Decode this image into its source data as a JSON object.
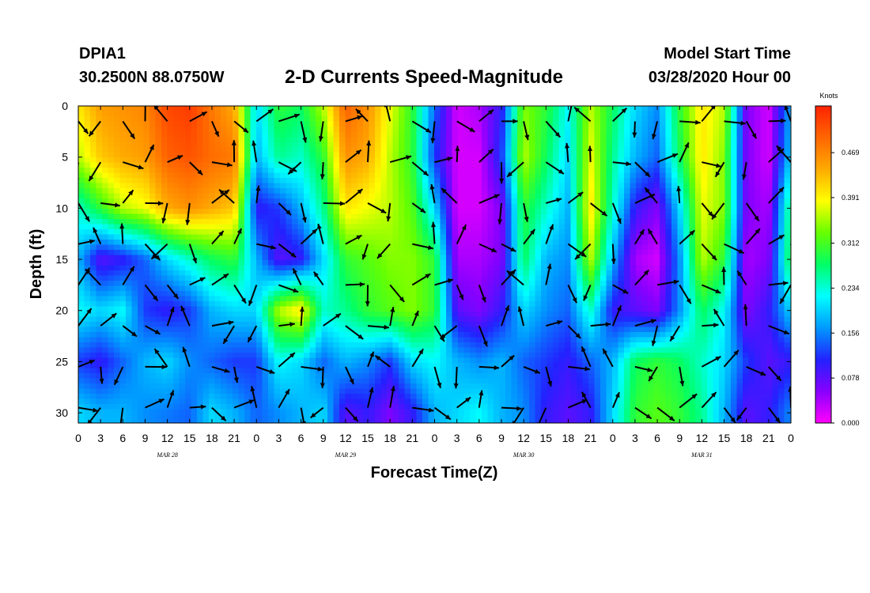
{
  "header": {
    "station": "DPIA1",
    "location": "30.2500N 88.0750W",
    "title": "2-D Currents Speed-Magnitude",
    "model_start_label": "Model Start Time",
    "model_start_value": "03/28/2020 Hour 00"
  },
  "chart_data": {
    "type": "heatmap",
    "title": "2-D Currents Speed-Magnitude",
    "xlabel": "Forecast Time(Z)",
    "ylabel": "Depth (ft)",
    "x_tick_labels": [
      "0",
      "3",
      "6",
      "9",
      "12",
      "15",
      "18",
      "21",
      "0",
      "3",
      "6",
      "9",
      "12",
      "15",
      "18",
      "21",
      "0",
      "3",
      "6",
      "9",
      "12",
      "15",
      "18",
      "21",
      "0",
      "3",
      "6",
      "9",
      "12",
      "15",
      "18",
      "21",
      "0"
    ],
    "x_range_hours": [
      0,
      96
    ],
    "day_labels": [
      {
        "label": "MAR 28",
        "hour": 12
      },
      {
        "label": "MAR 29",
        "hour": 36
      },
      {
        "label": "MAR 30",
        "hour": 60
      },
      {
        "label": "MAR 31",
        "hour": 84
      }
    ],
    "y_tick_labels": [
      "0",
      "5",
      "10",
      "15",
      "20",
      "25",
      "30"
    ],
    "y_ticks": [
      0,
      5,
      10,
      15,
      20,
      25,
      30
    ],
    "ylim": [
      0,
      31
    ],
    "y_inverted": true,
    "colorbar": {
      "label": "Knots",
      "range": [
        0,
        0.55
      ],
      "ticks": [
        0.469,
        0.391,
        0.312,
        0.234,
        0.156,
        0.078,
        0.0
      ],
      "tick_labels": [
        "0.469",
        "0.391",
        "0.312",
        "0.234",
        "0.156",
        "0.078",
        "0.000"
      ],
      "colors": [
        "#ff00ff",
        "#8800ff",
        "#2222ff",
        "#0099ff",
        "#00ffff",
        "#00ff66",
        "#66ff00",
        "#ffff00",
        "#ffaa00",
        "#ff6600",
        "#ff2200"
      ]
    },
    "speed_profile_by_column": {
      "hours": [
        0,
        3,
        6,
        9,
        12,
        15,
        18,
        21,
        24,
        27,
        30,
        33,
        36,
        39,
        42,
        45,
        48,
        51,
        54,
        57,
        60,
        63,
        66,
        69,
        72,
        75,
        78,
        81,
        84,
        87,
        90,
        93,
        96
      ],
      "depths_ft": [
        0,
        5,
        10,
        15,
        20,
        25,
        30
      ],
      "speed_knots": [
        [
          0.4,
          0.36,
          0.24,
          0.18,
          0.22,
          0.12,
          0.2
        ],
        [
          0.45,
          0.42,
          0.3,
          0.08,
          0.2,
          0.1,
          0.18
        ],
        [
          0.46,
          0.44,
          0.36,
          0.1,
          0.22,
          0.14,
          0.18
        ],
        [
          0.47,
          0.45,
          0.38,
          0.14,
          0.12,
          0.18,
          0.16
        ],
        [
          0.52,
          0.5,
          0.44,
          0.2,
          0.1,
          0.2,
          0.15
        ],
        [
          0.53,
          0.51,
          0.46,
          0.24,
          0.12,
          0.16,
          0.14
        ],
        [
          0.48,
          0.49,
          0.44,
          0.28,
          0.18,
          0.14,
          0.2
        ],
        [
          0.44,
          0.48,
          0.42,
          0.3,
          0.2,
          0.12,
          0.18
        ],
        [
          0.2,
          0.18,
          0.1,
          0.18,
          0.2,
          0.12,
          0.14
        ],
        [
          0.3,
          0.26,
          0.12,
          0.08,
          0.36,
          0.22,
          0.16
        ],
        [
          0.28,
          0.24,
          0.18,
          0.1,
          0.4,
          0.2,
          0.18
        ],
        [
          0.36,
          0.3,
          0.26,
          0.2,
          0.24,
          0.14,
          0.2
        ],
        [
          0.5,
          0.46,
          0.4,
          0.3,
          0.26,
          0.18,
          0.08
        ],
        [
          0.46,
          0.44,
          0.38,
          0.32,
          0.3,
          0.16,
          0.1
        ],
        [
          0.38,
          0.36,
          0.36,
          0.34,
          0.32,
          0.12,
          0.06
        ],
        [
          0.3,
          0.3,
          0.32,
          0.34,
          0.34,
          0.2,
          0.1
        ],
        [
          0.14,
          0.12,
          0.2,
          0.3,
          0.3,
          0.22,
          0.18
        ],
        [
          0.02,
          0.02,
          0.02,
          0.04,
          0.08,
          0.18,
          0.2
        ],
        [
          0.04,
          0.02,
          0.02,
          0.04,
          0.06,
          0.16,
          0.22
        ],
        [
          0.1,
          0.12,
          0.06,
          0.06,
          0.1,
          0.18,
          0.18
        ],
        [
          0.34,
          0.36,
          0.3,
          0.28,
          0.2,
          0.14,
          0.16
        ],
        [
          0.3,
          0.28,
          0.24,
          0.18,
          0.16,
          0.12,
          0.1
        ],
        [
          0.22,
          0.2,
          0.18,
          0.16,
          0.14,
          0.1,
          0.08
        ],
        [
          0.36,
          0.38,
          0.4,
          0.36,
          0.24,
          0.14,
          0.1
        ],
        [
          0.28,
          0.26,
          0.24,
          0.18,
          0.1,
          0.18,
          0.2
        ],
        [
          0.2,
          0.18,
          0.1,
          0.04,
          0.08,
          0.28,
          0.3
        ],
        [
          0.16,
          0.14,
          0.06,
          0.02,
          0.06,
          0.3,
          0.32
        ],
        [
          0.3,
          0.28,
          0.2,
          0.16,
          0.16,
          0.28,
          0.3
        ],
        [
          0.4,
          0.4,
          0.38,
          0.36,
          0.28,
          0.24,
          0.26
        ],
        [
          0.36,
          0.34,
          0.34,
          0.3,
          0.22,
          0.2,
          0.18
        ],
        [
          0.06,
          0.06,
          0.06,
          0.04,
          0.06,
          0.12,
          0.08
        ],
        [
          0.02,
          0.02,
          0.04,
          0.06,
          0.1,
          0.08,
          0.1
        ],
        [
          0.18,
          0.2,
          0.28,
          0.3,
          0.2,
          0.1,
          0.16
        ]
      ]
    }
  }
}
